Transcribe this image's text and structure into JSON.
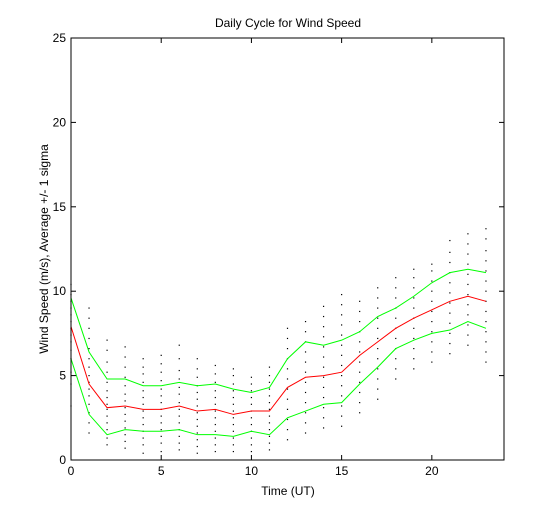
{
  "chart_data": {
    "type": "line",
    "title": "Daily Cycle for Wind Speed",
    "xlabel": "Time (UT)",
    "ylabel": "Wind Speed (m/s), Average +/- 1 sigma",
    "xlim": [
      0,
      24
    ],
    "ylim": [
      0,
      25
    ],
    "xticks": [
      0,
      5,
      10,
      15,
      20
    ],
    "yticks": [
      0,
      5,
      10,
      15,
      20,
      25
    ],
    "grid": false,
    "x": [
      0,
      1,
      2,
      3,
      4,
      5,
      6,
      7,
      8,
      9,
      10,
      11,
      12,
      13,
      14,
      15,
      16,
      17,
      18,
      19,
      20,
      21,
      22,
      23
    ],
    "series": [
      {
        "color": "#ff0000",
        "values": [
          7.9,
          4.5,
          3.1,
          3.2,
          3.0,
          3.0,
          3.2,
          2.9,
          3.0,
          2.7,
          2.9,
          2.9,
          4.3,
          4.9,
          5.0,
          5.2,
          6.2,
          7.0,
          7.8,
          8.4,
          8.9,
          9.4,
          9.7,
          9.4
        ]
      },
      {
        "color": "#00ff00",
        "values": [
          9.6,
          6.4,
          4.8,
          4.8,
          4.4,
          4.4,
          4.6,
          4.4,
          4.5,
          4.2,
          4.0,
          4.3,
          6.0,
          7.0,
          6.8,
          7.1,
          7.6,
          8.5,
          9.0,
          9.7,
          10.5,
          11.1,
          11.3,
          11.1
        ]
      },
      {
        "color": "#00ff00",
        "values": [
          6.0,
          2.7,
          1.5,
          1.8,
          1.7,
          1.7,
          1.8,
          1.5,
          1.5,
          1.4,
          1.7,
          1.5,
          2.5,
          2.9,
          3.3,
          3.4,
          4.5,
          5.5,
          6.6,
          7.1,
          7.5,
          7.7,
          8.2,
          7.8
        ]
      }
    ],
    "scatter_color": "#000000",
    "scatter": [
      [
        0,
        3.2
      ],
      [
        0,
        4.5
      ],
      [
        0,
        5.2
      ],
      [
        0,
        6.0
      ],
      [
        0,
        6.5
      ],
      [
        0,
        7.0
      ],
      [
        0,
        7.4
      ],
      [
        0,
        7.8
      ],
      [
        0,
        8.2
      ],
      [
        0,
        8.6
      ],
      [
        0,
        9.0
      ],
      [
        0,
        9.4
      ],
      [
        0,
        9.8
      ],
      [
        0,
        10.4
      ],
      [
        1,
        1.6
      ],
      [
        1,
        2.2
      ],
      [
        1,
        2.8
      ],
      [
        1,
        3.3
      ],
      [
        1,
        3.8
      ],
      [
        1,
        4.2
      ],
      [
        1,
        4.6
      ],
      [
        1,
        5.0
      ],
      [
        1,
        5.5
      ],
      [
        1,
        6.0
      ],
      [
        1,
        6.6
      ],
      [
        1,
        7.2
      ],
      [
        1,
        7.8
      ],
      [
        1,
        8.4
      ],
      [
        1,
        9.0
      ],
      [
        2,
        0.9
      ],
      [
        2,
        1.3
      ],
      [
        2,
        1.8
      ],
      [
        2,
        2.2
      ],
      [
        2,
        2.6
      ],
      [
        2,
        3.0
      ],
      [
        2,
        3.3
      ],
      [
        2,
        3.7
      ],
      [
        2,
        4.1
      ],
      [
        2,
        4.6
      ],
      [
        2,
        5.2
      ],
      [
        2,
        5.8
      ],
      [
        2,
        6.5
      ],
      [
        2,
        7.1
      ],
      [
        3,
        0.7
      ],
      [
        3,
        1.1
      ],
      [
        3,
        1.5
      ],
      [
        3,
        1.9
      ],
      [
        3,
        2.3
      ],
      [
        3,
        2.7
      ],
      [
        3,
        3.1
      ],
      [
        3,
        3.5
      ],
      [
        3,
        3.9
      ],
      [
        3,
        4.4
      ],
      [
        3,
        4.9
      ],
      [
        3,
        5.5
      ],
      [
        3,
        6.1
      ],
      [
        3,
        6.7
      ],
      [
        4,
        0.4
      ],
      [
        4,
        0.9
      ],
      [
        4,
        1.3
      ],
      [
        4,
        1.7
      ],
      [
        4,
        2.1
      ],
      [
        4,
        2.5
      ],
      [
        4,
        2.9
      ],
      [
        4,
        3.3
      ],
      [
        4,
        3.7
      ],
      [
        4,
        4.1
      ],
      [
        4,
        4.6
      ],
      [
        4,
        5.1
      ],
      [
        4,
        5.5
      ],
      [
        4,
        6.0
      ],
      [
        5,
        0.5
      ],
      [
        5,
        1.0
      ],
      [
        5,
        1.4
      ],
      [
        5,
        1.8
      ],
      [
        5,
        2.2
      ],
      [
        5,
        2.6
      ],
      [
        5,
        3.0
      ],
      [
        5,
        3.4
      ],
      [
        5,
        3.8
      ],
      [
        5,
        4.2
      ],
      [
        5,
        4.7
      ],
      [
        5,
        5.2
      ],
      [
        5,
        5.7
      ],
      [
        5,
        6.2
      ],
      [
        6,
        0.6
      ],
      [
        6,
        1.0
      ],
      [
        6,
        1.4
      ],
      [
        6,
        1.8
      ],
      [
        6,
        2.2
      ],
      [
        6,
        2.6
      ],
      [
        6,
        3.0
      ],
      [
        6,
        3.4
      ],
      [
        6,
        3.9
      ],
      [
        6,
        4.3
      ],
      [
        6,
        4.8
      ],
      [
        6,
        5.3
      ],
      [
        6,
        6.0
      ],
      [
        6,
        6.8
      ],
      [
        7,
        0.4
      ],
      [
        7,
        0.8
      ],
      [
        7,
        1.2
      ],
      [
        7,
        1.6
      ],
      [
        7,
        2.0
      ],
      [
        7,
        2.4
      ],
      [
        7,
        2.8
      ],
      [
        7,
        3.2
      ],
      [
        7,
        3.6
      ],
      [
        7,
        4.0
      ],
      [
        7,
        4.4
      ],
      [
        7,
        4.9
      ],
      [
        7,
        5.4
      ],
      [
        7,
        6.0
      ],
      [
        8,
        0.5
      ],
      [
        8,
        0.9
      ],
      [
        8,
        1.3
      ],
      [
        8,
        1.7
      ],
      [
        8,
        2.1
      ],
      [
        8,
        2.5
      ],
      [
        8,
        2.9
      ],
      [
        8,
        3.3
      ],
      [
        8,
        3.7
      ],
      [
        8,
        4.1
      ],
      [
        8,
        4.6
      ],
      [
        8,
        5.1
      ],
      [
        8,
        5.6
      ],
      [
        9,
        0.5
      ],
      [
        9,
        0.9
      ],
      [
        9,
        1.3
      ],
      [
        9,
        1.7
      ],
      [
        9,
        2.1
      ],
      [
        9,
        2.5
      ],
      [
        9,
        2.9
      ],
      [
        9,
        3.3
      ],
      [
        9,
        3.7
      ],
      [
        9,
        4.1
      ],
      [
        9,
        4.5
      ],
      [
        9,
        5.0
      ],
      [
        9,
        5.4
      ],
      [
        10,
        0.5
      ],
      [
        10,
        0.9
      ],
      [
        10,
        1.3
      ],
      [
        10,
        1.7
      ],
      [
        10,
        2.1
      ],
      [
        10,
        2.5
      ],
      [
        10,
        2.9
      ],
      [
        10,
        3.3
      ],
      [
        10,
        3.7
      ],
      [
        10,
        4.1
      ],
      [
        10,
        4.5
      ],
      [
        10,
        4.9
      ],
      [
        11,
        0.6
      ],
      [
        11,
        1.0
      ],
      [
        11,
        1.4
      ],
      [
        11,
        1.8
      ],
      [
        11,
        2.2
      ],
      [
        11,
        2.6
      ],
      [
        11,
        3.0
      ],
      [
        11,
        3.4
      ],
      [
        11,
        3.8
      ],
      [
        11,
        4.2
      ],
      [
        11,
        4.6
      ],
      [
        11,
        5.0
      ],
      [
        11,
        5.5
      ],
      [
        12,
        1.2
      ],
      [
        12,
        1.8
      ],
      [
        12,
        2.4
      ],
      [
        12,
        3.0
      ],
      [
        12,
        3.6
      ],
      [
        12,
        4.2
      ],
      [
        12,
        4.8
      ],
      [
        12,
        5.4
      ],
      [
        12,
        6.0
      ],
      [
        12,
        6.6
      ],
      [
        12,
        7.2
      ],
      [
        12,
        7.8
      ],
      [
        13,
        1.6
      ],
      [
        13,
        2.2
      ],
      [
        13,
        2.8
      ],
      [
        13,
        3.4
      ],
      [
        13,
        4.0
      ],
      [
        13,
        4.6
      ],
      [
        13,
        5.2
      ],
      [
        13,
        5.8
      ],
      [
        13,
        6.4
      ],
      [
        13,
        7.0
      ],
      [
        13,
        7.6
      ],
      [
        13,
        8.2
      ],
      [
        14,
        1.9
      ],
      [
        14,
        2.5
      ],
      [
        14,
        3.1
      ],
      [
        14,
        3.7
      ],
      [
        14,
        4.3
      ],
      [
        14,
        4.9
      ],
      [
        14,
        5.5
      ],
      [
        14,
        6.1
      ],
      [
        14,
        6.7
      ],
      [
        14,
        7.3
      ],
      [
        14,
        7.9
      ],
      [
        14,
        8.5
      ],
      [
        14,
        9.1
      ],
      [
        15,
        2.0
      ],
      [
        15,
        2.6
      ],
      [
        15,
        3.2
      ],
      [
        15,
        3.8
      ],
      [
        15,
        4.4
      ],
      [
        15,
        5.0
      ],
      [
        15,
        5.6
      ],
      [
        15,
        6.2
      ],
      [
        15,
        6.8
      ],
      [
        15,
        7.4
      ],
      [
        15,
        8.0
      ],
      [
        15,
        8.6
      ],
      [
        15,
        9.2
      ],
      [
        15,
        9.8
      ],
      [
        16,
        2.8
      ],
      [
        16,
        3.4
      ],
      [
        16,
        4.0
      ],
      [
        16,
        4.6
      ],
      [
        16,
        5.2
      ],
      [
        16,
        5.8
      ],
      [
        16,
        6.4
      ],
      [
        16,
        7.0
      ],
      [
        16,
        7.6
      ],
      [
        16,
        8.2
      ],
      [
        16,
        8.8
      ],
      [
        16,
        9.4
      ],
      [
        17,
        3.6
      ],
      [
        17,
        4.2
      ],
      [
        17,
        4.8
      ],
      [
        17,
        5.4
      ],
      [
        17,
        6.0
      ],
      [
        17,
        6.6
      ],
      [
        17,
        7.2
      ],
      [
        17,
        7.8
      ],
      [
        17,
        8.4
      ],
      [
        17,
        9.0
      ],
      [
        17,
        9.6
      ],
      [
        17,
        10.2
      ],
      [
        18,
        4.8
      ],
      [
        18,
        5.4
      ],
      [
        18,
        6.0
      ],
      [
        18,
        6.6
      ],
      [
        18,
        7.2
      ],
      [
        18,
        7.8
      ],
      [
        18,
        8.4
      ],
      [
        18,
        9.0
      ],
      [
        18,
        9.6
      ],
      [
        18,
        10.2
      ],
      [
        18,
        10.8
      ],
      [
        19,
        5.4
      ],
      [
        19,
        6.0
      ],
      [
        19,
        6.6
      ],
      [
        19,
        7.2
      ],
      [
        19,
        7.8
      ],
      [
        19,
        8.4
      ],
      [
        19,
        9.0
      ],
      [
        19,
        9.6
      ],
      [
        19,
        10.2
      ],
      [
        19,
        10.8
      ],
      [
        19,
        11.3
      ],
      [
        20,
        5.8
      ],
      [
        20,
        6.4
      ],
      [
        20,
        7.0
      ],
      [
        20,
        7.6
      ],
      [
        20,
        8.2
      ],
      [
        20,
        8.8
      ],
      [
        20,
        9.4
      ],
      [
        20,
        10.0
      ],
      [
        20,
        10.6
      ],
      [
        20,
        11.2
      ],
      [
        20,
        11.6
      ],
      [
        21,
        6.3
      ],
      [
        21,
        6.9
      ],
      [
        21,
        7.5
      ],
      [
        21,
        8.1
      ],
      [
        21,
        8.7
      ],
      [
        21,
        9.3
      ],
      [
        21,
        9.9
      ],
      [
        21,
        10.5
      ],
      [
        21,
        11.1
      ],
      [
        21,
        11.7
      ],
      [
        21,
        12.3
      ],
      [
        21,
        13.0
      ],
      [
        22,
        6.8
      ],
      [
        22,
        7.4
      ],
      [
        22,
        8.0
      ],
      [
        22,
        8.6
      ],
      [
        22,
        9.2
      ],
      [
        22,
        9.8
      ],
      [
        22,
        10.4
      ],
      [
        22,
        11.0
      ],
      [
        22,
        11.6
      ],
      [
        22,
        12.2
      ],
      [
        22,
        12.8
      ],
      [
        22,
        13.4
      ],
      [
        23,
        5.8
      ],
      [
        23,
        6.4
      ],
      [
        23,
        7.0
      ],
      [
        23,
        7.6
      ],
      [
        23,
        8.2
      ],
      [
        23,
        8.8
      ],
      [
        23,
        9.4
      ],
      [
        23,
        10.0
      ],
      [
        23,
        10.6
      ],
      [
        23,
        11.2
      ],
      [
        23,
        11.8
      ],
      [
        23,
        12.4
      ],
      [
        23,
        13.1
      ],
      [
        23,
        13.7
      ]
    ]
  }
}
